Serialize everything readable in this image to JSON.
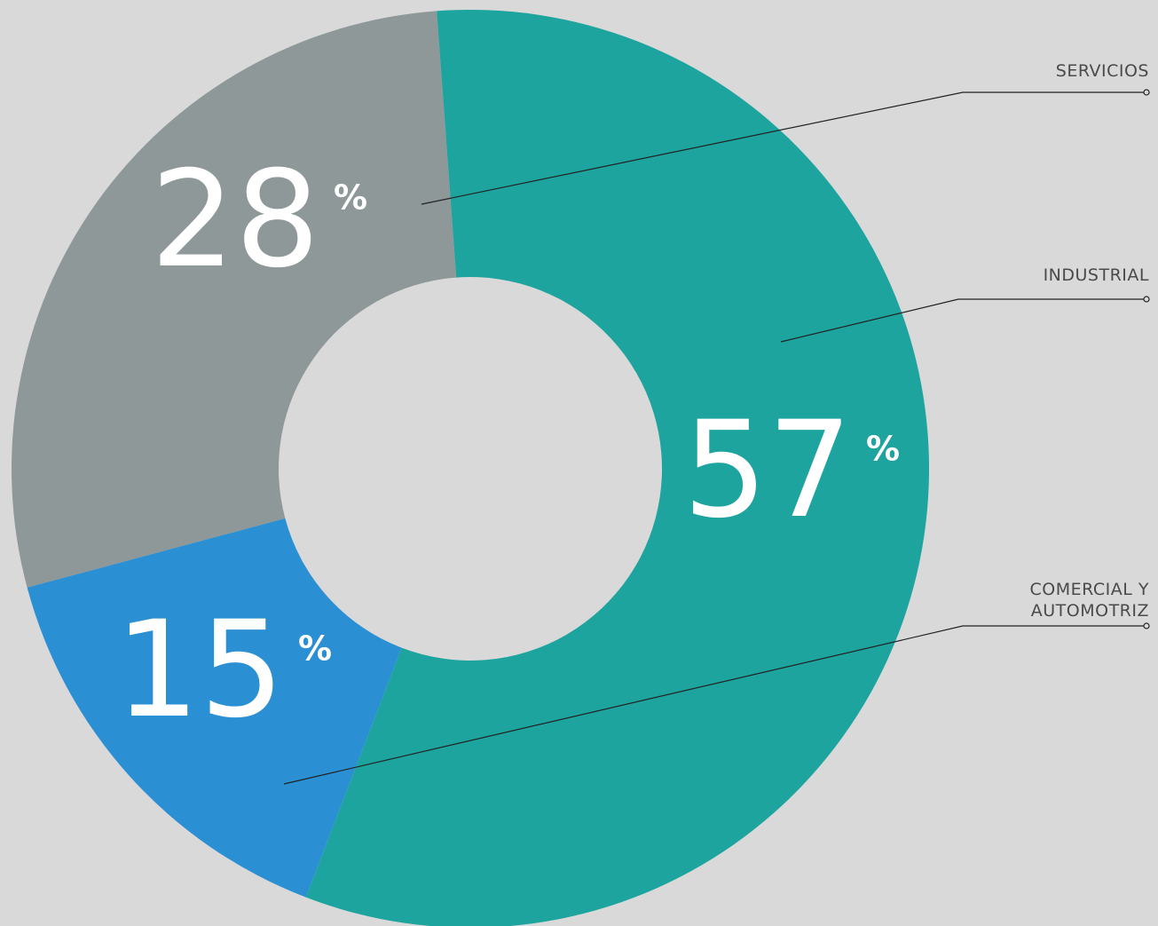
{
  "chart_data": {
    "type": "pie",
    "categories": [
      "SERVICIOS",
      "INDUSTRIAL",
      "COMERCIAL Y AUTOMOTRIZ"
    ],
    "values": [
      28,
      57,
      15
    ],
    "unit": "%",
    "colors": [
      "#8e9898",
      "#1ea49f",
      "#2b8fd4"
    ]
  }
}
